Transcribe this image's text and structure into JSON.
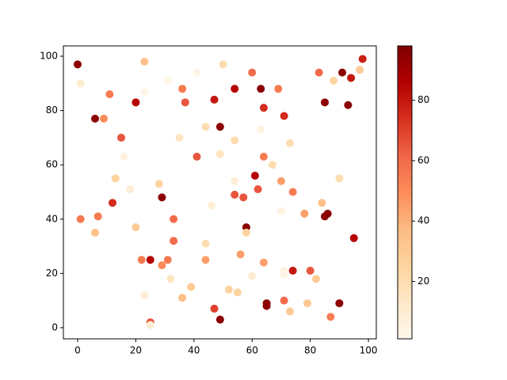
{
  "chart_data": {
    "type": "scatter",
    "x": [
      0,
      1,
      23,
      23,
      31,
      41,
      50,
      60,
      11,
      6,
      9,
      20,
      36,
      37,
      47,
      49,
      54,
      63,
      69,
      64,
      71,
      83,
      88,
      91,
      94,
      98,
      97,
      85,
      93,
      15,
      16,
      35,
      44,
      41,
      49,
      54,
      63,
      64,
      67,
      73,
      13,
      18,
      28,
      29,
      54,
      61,
      62,
      54,
      57,
      70,
      74,
      90,
      1,
      7,
      12,
      33,
      46,
      58,
      58,
      70,
      78,
      84,
      85,
      86,
      95,
      6,
      20,
      33,
      22,
      25,
      29,
      31,
      32,
      36,
      39,
      44,
      44,
      56,
      60,
      64,
      71,
      71,
      74,
      80,
      82,
      23,
      25,
      25,
      47,
      49,
      52,
      55,
      65,
      65,
      71,
      73,
      79,
      87,
      90
    ],
    "y": [
      97,
      90,
      98,
      87,
      91,
      94,
      97,
      94,
      86,
      77,
      77,
      83,
      88,
      83,
      84,
      74,
      88,
      88,
      88,
      81,
      78,
      94,
      91,
      94,
      92,
      99,
      95,
      83,
      82,
      70,
      63,
      70,
      74,
      63,
      64,
      69,
      73,
      63,
      60,
      68,
      55,
      51,
      53,
      48,
      54,
      56,
      51,
      49,
      48,
      54,
      50,
      55,
      40,
      41,
      46,
      40,
      45,
      37,
      35,
      43,
      42,
      46,
      41,
      42,
      33,
      35,
      37,
      32,
      25,
      25,
      23,
      25,
      18,
      11,
      15,
      31,
      25,
      27,
      19,
      24,
      21,
      19.5,
      21,
      21,
      18,
      12,
      2,
      1,
      7,
      3,
      14,
      13,
      9,
      8,
      10,
      6,
      9,
      4,
      9
    ],
    "c": [
      95,
      10,
      35,
      3,
      3,
      3,
      20,
      60,
      55,
      95,
      50,
      85,
      55,
      65,
      80,
      95,
      85,
      95,
      55,
      75,
      75,
      60,
      25,
      95,
      80,
      78,
      30,
      95,
      95,
      65,
      5,
      15,
      20,
      65,
      15,
      20,
      5,
      55,
      20,
      20,
      25,
      8,
      25,
      95,
      8,
      85,
      65,
      65,
      65,
      45,
      55,
      20,
      55,
      55,
      75,
      60,
      8,
      95,
      25,
      5,
      45,
      35,
      95,
      95,
      85,
      35,
      30,
      60,
      55,
      85,
      50,
      55,
      15,
      35,
      30,
      20,
      45,
      45,
      10,
      45,
      5,
      3,
      80,
      65,
      30,
      8,
      65,
      10,
      70,
      95,
      25,
      25,
      95,
      95,
      60,
      30,
      30,
      55,
      95
    ],
    "colormap": [
      "#fff7ec",
      "#fee8c8",
      "#fdd49e",
      "#fdbb84",
      "#fc8d59",
      "#ef6548",
      "#d7301f",
      "#b30000",
      "#7f0000"
    ],
    "xlim": [
      -4.9,
      102.7
    ],
    "ylim": [
      -4.1,
      103.8
    ],
    "clim": [
      1,
      98
    ],
    "xticks": [
      0,
      20,
      40,
      60,
      80,
      100
    ],
    "yticks": [
      0,
      20,
      40,
      60,
      80,
      100
    ],
    "cticks": [
      20,
      40,
      60,
      80
    ]
  }
}
